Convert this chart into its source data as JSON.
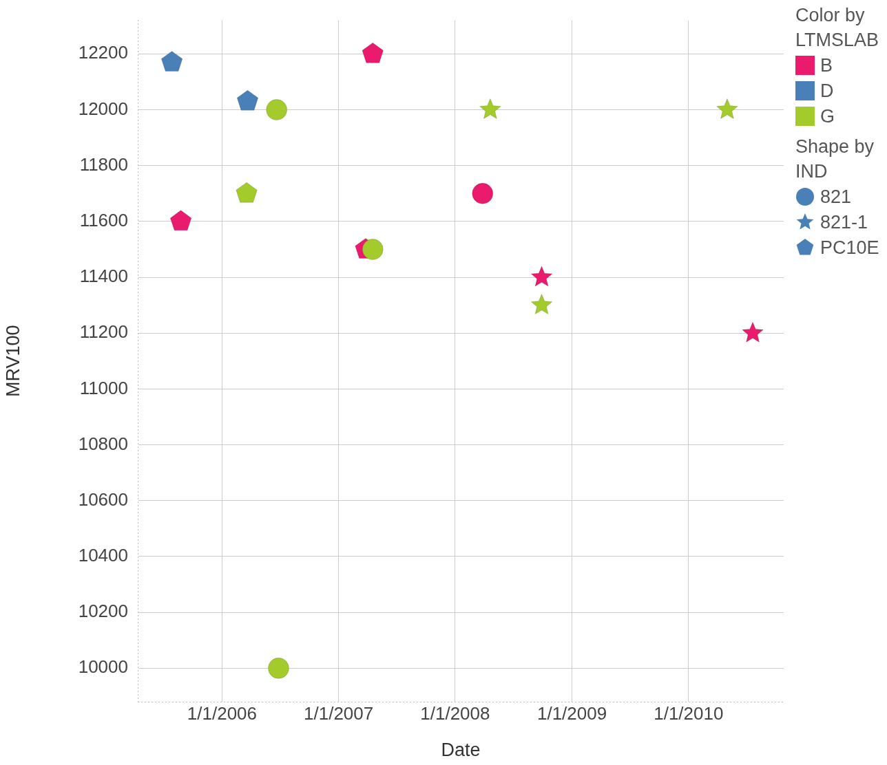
{
  "chart_data": {
    "type": "scatter",
    "xlabel": "Date",
    "ylabel": "MRV100",
    "legend_title": "Color by LTMSLAB",
    "grid": true,
    "annotations": [
      "B",
      "D",
      "G",
      "Shape by IND",
      "821",
      "821-1",
      "PC10E"
    ],
    "xlim": [
      "2005-04-12",
      "2010-10-26"
    ],
    "xticks": [
      {
        "value": "2006-01-01",
        "label": "1/1/2006"
      },
      {
        "value": "2007-01-01",
        "label": "1/1/2007"
      },
      {
        "value": "2008-01-01",
        "label": "1/1/2008"
      },
      {
        "value": "2009-01-01",
        "label": "1/1/2009"
      },
      {
        "value": "2010-01-01",
        "label": "1/1/2010"
      }
    ],
    "ylim": [
      9880,
      12320
    ],
    "yticks": [
      10000,
      10200,
      10400,
      10600,
      10800,
      11000,
      11200,
      11400,
      11600,
      11800,
      12000,
      12200
    ],
    "series": [
      {
        "color": "#ea1a6c",
        "marker": "circle",
        "x": [
          "2008-03-27"
        ],
        "values": [
          11700
        ]
      },
      {
        "color": "#ea1a6c",
        "marker": "star",
        "x": [
          "2008-09-28",
          "2010-07-21"
        ],
        "values": [
          11400,
          11200
        ]
      },
      {
        "color": "#ea1a6c",
        "x": [
          "2005-08-25",
          "2007-03-27",
          "2007-04-18"
        ],
        "values": [
          11600,
          11500,
          12200
        ]
      },
      {
        "color": "#4a80b8",
        "x": [
          "2005-07-28",
          "2006-03-22"
        ],
        "values": [
          12170,
          12030
        ]
      },
      {
        "color": "#a2cb2b",
        "marker": "circle",
        "x": [
          "2006-06-21",
          "2006-06-27",
          "2007-04-18"
        ],
        "values": [
          12000,
          10000,
          11500
        ]
      },
      {
        "color": "#a2cb2b",
        "marker": "star",
        "x": [
          "2008-04-20",
          "2008-09-28",
          "2010-05-02"
        ],
        "values": [
          12000,
          11300,
          12000
        ]
      },
      {
        "color": "#a2cb2b",
        "x": [
          "2006-03-19"
        ],
        "values": [
          11700
        ]
      }
    ]
  }
}
